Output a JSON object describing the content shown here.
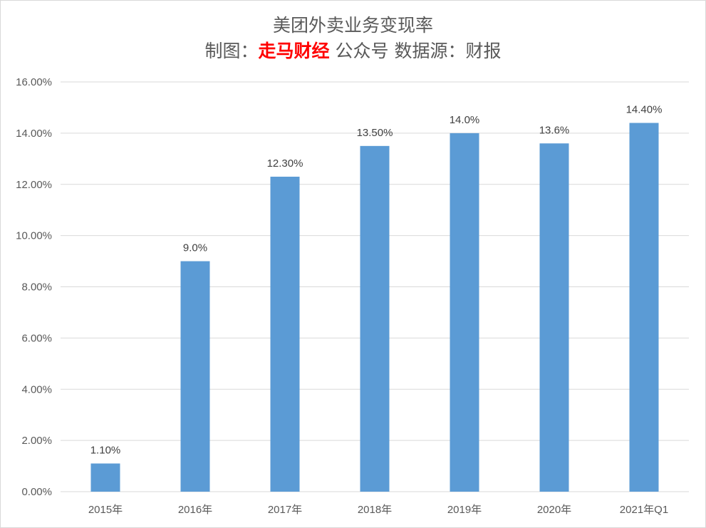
{
  "chart_data": {
    "type": "bar",
    "title": "美团外卖业务变现率",
    "subtitle": {
      "prefix": "制图：",
      "brand": "走马财经",
      "suffix": " 公众号 数据源：财报"
    },
    "categories": [
      "2015年",
      "2016年",
      "2017年",
      "2018年",
      "2019年",
      "2020年",
      "2021年Q1"
    ],
    "values": [
      1.1,
      9.0,
      12.3,
      13.5,
      14.0,
      13.6,
      14.4
    ],
    "data_labels": [
      "1.10%",
      "9.0%",
      "12.30%",
      "13.50%",
      "14.0%",
      "13.6%",
      "14.40%"
    ],
    "yticks": [
      "0.00%",
      "2.00%",
      "4.00%",
      "6.00%",
      "8.00%",
      "10.00%",
      "12.00%",
      "14.00%",
      "16.00%"
    ],
    "ylim": [
      0,
      16
    ],
    "xlabel": "",
    "ylabel": "",
    "grid": true,
    "colors": {
      "bar": "#5b9bd5",
      "grid": "#d9d9d9",
      "brand": "#ff0000"
    }
  }
}
